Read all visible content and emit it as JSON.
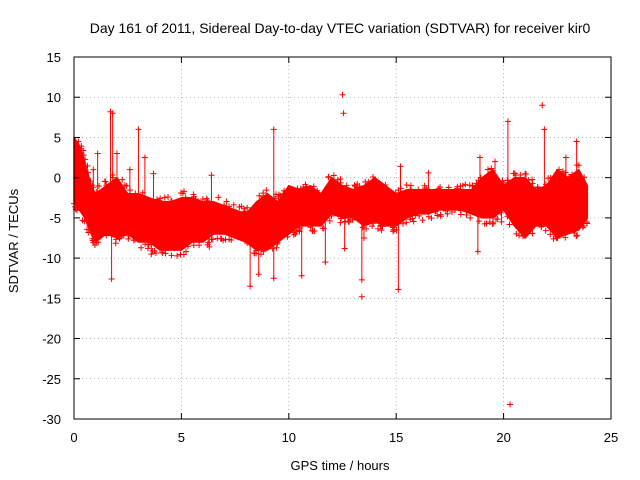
{
  "chart_data": {
    "type": "scatter",
    "title": "Day 161 of 2011, Sidereal Day-to-day VTEC variation (SDTVAR) for receiver kir0",
    "xlabel": "GPS time / hours",
    "ylabel": "SDTVAR / TECUs",
    "xlim": [
      0,
      25
    ],
    "ylim": [
      -30,
      15
    ],
    "xticks": [
      0,
      5,
      10,
      15,
      20,
      25
    ],
    "xtick_labels": [
      "0",
      "5",
      "10",
      "15",
      "20",
      "25"
    ],
    "yticks": [
      15,
      10,
      5,
      0,
      -5,
      -10,
      -15,
      -20,
      -25,
      -30
    ],
    "ytick_labels": [
      "15",
      "10",
      "5",
      "0",
      "-5",
      "-10",
      "-15",
      "-20",
      "-25",
      "-30"
    ],
    "grid": true,
    "marker": "+",
    "series_color": "#ff0000",
    "series": [
      {
        "name": "SDTVAR",
        "band_x": [
          0.0,
          0.25,
          0.5,
          0.8,
          1.0,
          1.5,
          2.0,
          2.5,
          3.0,
          3.5,
          4.0,
          4.5,
          5.0,
          5.5,
          6.0,
          6.5,
          7.0,
          7.5,
          8.0,
          8.5,
          9.0,
          9.5,
          10.0,
          10.5,
          11.0,
          11.5,
          12.0,
          12.5,
          13.0,
          13.5,
          14.0,
          14.5,
          15.0,
          15.5,
          16.0,
          16.5,
          17.0,
          17.5,
          18.0,
          18.5,
          19.0,
          19.5,
          20.0,
          20.5,
          21.0,
          21.5,
          22.0,
          22.5,
          23.0,
          23.5,
          23.9
        ],
        "band_low": [
          -3,
          -4,
          -5,
          -7,
          -8,
          -7,
          -7.5,
          -7,
          -8,
          -8,
          -9,
          -9,
          -9,
          -8,
          -8,
          -7,
          -7,
          -7.5,
          -8,
          -9,
          -9,
          -8,
          -7,
          -6,
          -6,
          -6,
          -4.5,
          -5,
          -5,
          -6,
          -5.5,
          -6,
          -6,
          -5,
          -4.5,
          -4.5,
          -4,
          -4,
          -4,
          -4.5,
          -5,
          -5,
          -4,
          -6,
          -7.5,
          -6,
          -6,
          -7.5,
          -7,
          -6.5,
          -5
        ],
        "band_high": [
          5,
          4,
          2,
          -1,
          -2,
          -1,
          0,
          -2,
          -2,
          -2.5,
          -3,
          -3,
          -2.5,
          -2.5,
          -3,
          -3,
          -3.5,
          -4,
          -4.5,
          -3,
          -2,
          -3,
          -1,
          -1.5,
          -1,
          -2,
          0,
          -1,
          -1.5,
          -1,
          0,
          -1,
          -2,
          -1.5,
          -1.5,
          -1.5,
          -1.5,
          -1.5,
          -1.5,
          -1.5,
          0,
          1,
          -1,
          0,
          0,
          -1.5,
          -1,
          1,
          0,
          1,
          -1
        ],
        "outliers": [
          {
            "x": 1.7,
            "y": 8.2
          },
          {
            "x": 1.8,
            "y": 8.0
          },
          {
            "x": 1.75,
            "y": -12.6
          },
          {
            "x": 3.0,
            "y": 6.0
          },
          {
            "x": 3.6,
            "y": -9.5
          },
          {
            "x": 3.7,
            "y": 0.5
          },
          {
            "x": 6.3,
            "y": -8.6
          },
          {
            "x": 6.4,
            "y": 0.3
          },
          {
            "x": 8.2,
            "y": -13.5
          },
          {
            "x": 8.6,
            "y": -12.0
          },
          {
            "x": 9.3,
            "y": 6.0
          },
          {
            "x": 9.3,
            "y": -12.5
          },
          {
            "x": 10.6,
            "y": -12.2
          },
          {
            "x": 11.7,
            "y": -10.5
          },
          {
            "x": 12.5,
            "y": 10.3
          },
          {
            "x": 12.55,
            "y": 8.0
          },
          {
            "x": 12.6,
            "y": -8.8
          },
          {
            "x": 13.4,
            "y": -12.7
          },
          {
            "x": 13.4,
            "y": -14.8
          },
          {
            "x": 13.5,
            "y": -7.5
          },
          {
            "x": 15.1,
            "y": -13.9
          },
          {
            "x": 15.2,
            "y": 1.4
          },
          {
            "x": 16.5,
            "y": 0.6
          },
          {
            "x": 18.8,
            "y": -9.2
          },
          {
            "x": 19.9,
            "y": -5.5
          },
          {
            "x": 20.2,
            "y": 7.0
          },
          {
            "x": 20.3,
            "y": -28.2
          },
          {
            "x": 21.8,
            "y": 9.0
          },
          {
            "x": 21.9,
            "y": 6.0
          },
          {
            "x": 23.4,
            "y": 4.5
          },
          {
            "x": 0.9,
            "y": 1.0
          },
          {
            "x": 1.1,
            "y": 3.0
          },
          {
            "x": 2.0,
            "y": 3.0
          },
          {
            "x": 2.6,
            "y": 1.0
          },
          {
            "x": 3.3,
            "y": 2.5
          },
          {
            "x": 18.9,
            "y": 2.5
          },
          {
            "x": 19.6,
            "y": 2.0
          },
          {
            "x": 22.9,
            "y": 2.5
          }
        ]
      }
    ]
  }
}
